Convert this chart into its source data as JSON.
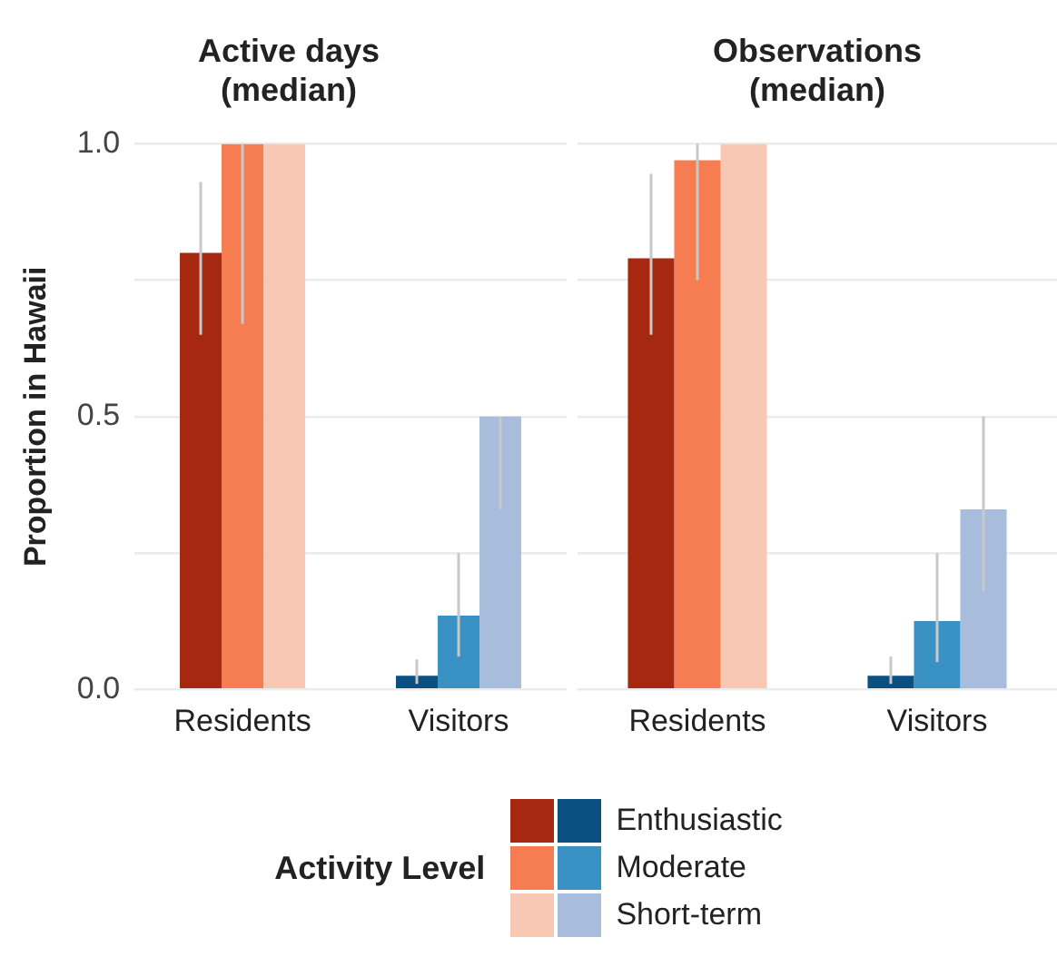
{
  "chart_data": [
    {
      "type": "bar",
      "title": "Active days\n(median)",
      "ylabel": "Proportion in Hawaii",
      "categories": [
        "Residents",
        "Visitors"
      ],
      "series": [
        {
          "name": "Enthusiastic",
          "colors": [
            "#a62811",
            "#0a5080"
          ],
          "values": [
            0.8,
            0.025
          ],
          "errors": [
            [
              0.65,
              0.93
            ],
            [
              0.01,
              0.055
            ]
          ]
        },
        {
          "name": "Moderate",
          "colors": [
            "#f67d51",
            "#3a92c4"
          ],
          "values": [
            1.0,
            0.135
          ],
          "errors": [
            [
              0.67,
              1.0
            ],
            [
              0.06,
              0.25
            ]
          ]
        },
        {
          "name": "Short-term",
          "colors": [
            "#f8c8b4",
            "#a8bddc"
          ],
          "values": [
            1.0,
            0.5
          ],
          "errors": [
            null,
            [
              0.33,
              0.5
            ]
          ]
        }
      ],
      "ylim": [
        0,
        1
      ],
      "yticks": [
        {
          "value": 0,
          "label": "0.0"
        },
        {
          "value": 0.25,
          "label": null
        },
        {
          "value": 0.5,
          "label": "0.5"
        },
        {
          "value": 0.75,
          "label": null
        },
        {
          "value": 1,
          "label": "1.0"
        }
      ],
      "grid": "y",
      "legend": "bottom",
      "legend_title": "Activity Level"
    },
    {
      "type": "bar",
      "title": "Observations\n(median)",
      "categories": [
        "Residents",
        "Visitors"
      ],
      "series": [
        {
          "colors": [
            "#a62811",
            "#0a5080"
          ],
          "values": [
            0.79,
            0.025
          ],
          "errors": [
            [
              0.65,
              0.945
            ],
            [
              0.01,
              0.06
            ]
          ]
        },
        {
          "colors": [
            "#f67d51",
            "#3a92c4"
          ],
          "values": [
            0.97,
            0.125
          ],
          "errors": [
            [
              0.75,
              1.0
            ],
            [
              0.05,
              0.25
            ]
          ]
        },
        {
          "colors": [
            "#f8c8b4",
            "#a8bddc"
          ],
          "values": [
            1.0,
            0.33
          ],
          "errors": [
            null,
            [
              0.18,
              0.5
            ]
          ]
        }
      ],
      "ylim": [
        0,
        1
      ],
      "yticks": [
        0,
        0.25,
        0.5,
        0.75,
        1
      ],
      "grid": "y",
      "tick_labels": "x"
    }
  ]
}
